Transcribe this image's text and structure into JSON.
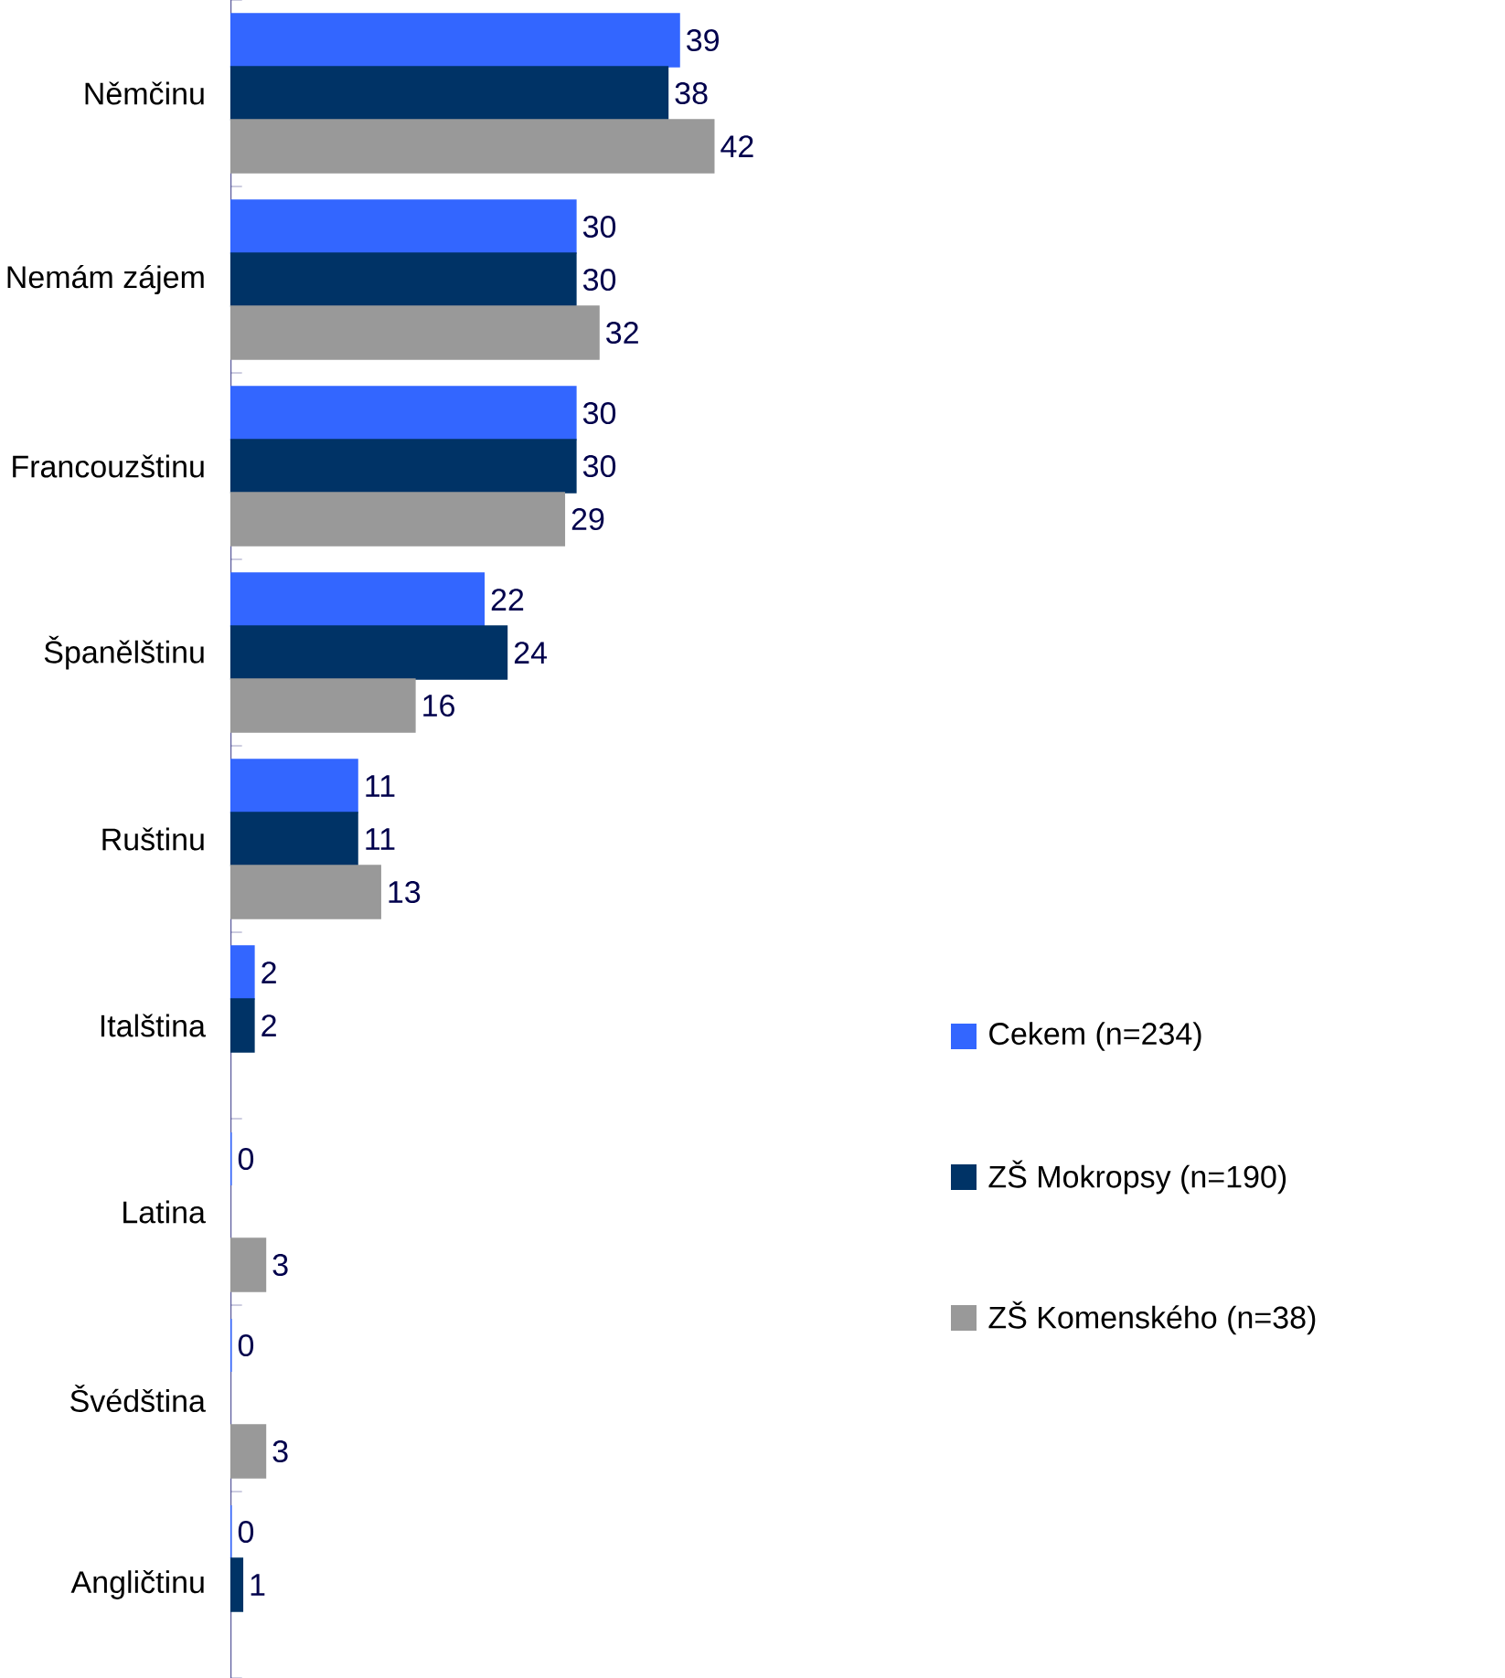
{
  "chart_data": {
    "type": "bar",
    "orientation": "horizontal",
    "data_labels": true,
    "legend": "right",
    "categories": [
      "Němčinu",
      "Nemám zájem",
      "Francouzštinu",
      "Španělštinu",
      "Ruštinu",
      "Italština",
      "Latina",
      "Švédština",
      "Angličtinu"
    ],
    "series": [
      {
        "name": "Cekem (n=234)",
        "color": "#3366ff",
        "values": [
          39,
          30,
          30,
          22,
          11,
          2,
          0,
          0,
          0
        ]
      },
      {
        "name": "ZŠ Mokropsy (n=190)",
        "color": "#003366",
        "values": [
          38,
          30,
          30,
          24,
          11,
          2,
          null,
          null,
          1
        ]
      },
      {
        "name": "ZŠ Komenského (n=38)",
        "color": "#999999",
        "values": [
          42,
          32,
          29,
          16,
          13,
          null,
          3,
          3,
          null
        ]
      }
    ]
  }
}
